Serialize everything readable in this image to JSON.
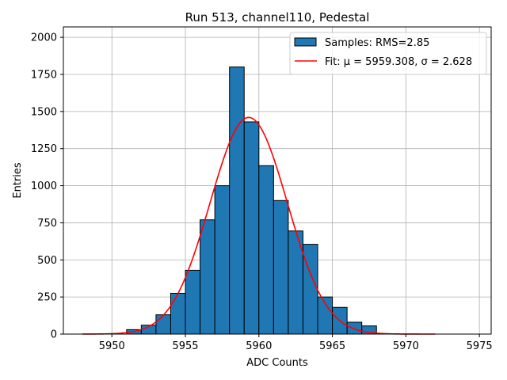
{
  "chart_data": {
    "type": "bar",
    "title": "Run 513, channel110, Pedestal",
    "xlabel": "ADC Counts",
    "ylabel": "Entries",
    "xlim": [
      5946.7,
      5975.8
    ],
    "ylim": [
      0,
      2070
    ],
    "xticks": [
      5950,
      5955,
      5960,
      5965,
      5970,
      5975
    ],
    "yticks": [
      0,
      250,
      500,
      750,
      1000,
      1250,
      1500,
      1750,
      2000
    ],
    "grid": true,
    "legend_position": "top-right",
    "colors": {
      "bars": "#1f77b4",
      "bar_edge": "#000000",
      "fit": "#ff0000",
      "grid": "#b0b0b0"
    },
    "histogram": {
      "name": "Samples: RMS=2.85",
      "bin_width": 1,
      "bin_edges_start": [
        5951,
        5952,
        5953,
        5954,
        5955,
        5956,
        5957,
        5958,
        5959,
        5960,
        5961,
        5962,
        5963,
        5964,
        5965,
        5966,
        5967
      ],
      "counts": [
        30,
        60,
        130,
        275,
        430,
        770,
        1000,
        1800,
        1430,
        1135,
        900,
        695,
        605,
        250,
        180,
        80,
        55
      ]
    },
    "fit": {
      "name": "Fit: μ = 5959.308, σ = 2.628",
      "mu": 5959.308,
      "sigma": 2.628,
      "peak": 1460,
      "x_range": [
        5948,
        5972
      ]
    }
  }
}
